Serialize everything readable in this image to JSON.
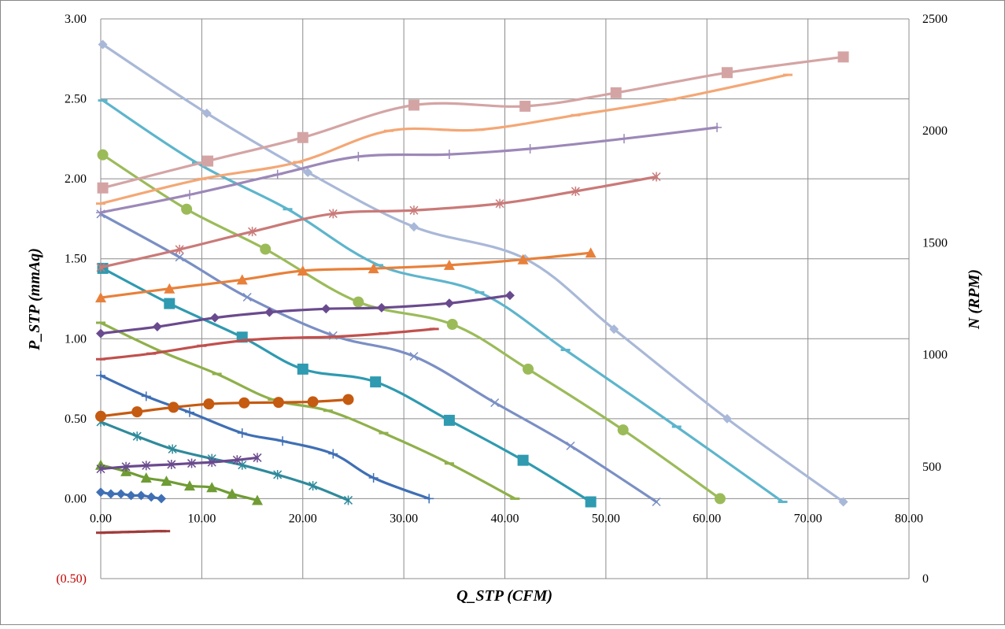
{
  "chart_data": {
    "type": "line",
    "title": "",
    "xlabel": "Q_STP (CFM)",
    "ylabel": "P_STP (mmAq)",
    "y2label": "N (RPM)",
    "xlim": [
      0,
      80
    ],
    "ylim": [
      -0.5,
      3.0
    ],
    "y2lim": [
      0,
      2500
    ],
    "grid": true,
    "legend": "none",
    "x_ticks": [
      "0.00",
      "10.00",
      "20.00",
      "30.00",
      "40.00",
      "50.00",
      "60.00",
      "70.00",
      "80.00"
    ],
    "y_ticks": [
      "(0.50)",
      "0.00",
      "0.50",
      "1.00",
      "1.50",
      "2.00",
      "2.50",
      "3.00"
    ],
    "y2_ticks": [
      "0",
      "500",
      "1000",
      "1500",
      "2000",
      "2500"
    ],
    "series": [
      {
        "name": "",
        "axis": "left",
        "color": "#3f6fb5",
        "marker": "diamond",
        "x": [
          0,
          1,
          2,
          3,
          4,
          5,
          6
        ],
        "y": [
          0.04,
          0.03,
          0.03,
          0.02,
          0.02,
          0.01,
          0.0
        ]
      },
      {
        "name": "",
        "axis": "left",
        "color": "#6f9c34",
        "marker": "triangle",
        "x": [
          0,
          2.5,
          4.5,
          6.5,
          8.8,
          11,
          13,
          15.5
        ],
        "y": [
          0.21,
          0.17,
          0.13,
          0.11,
          0.08,
          0.07,
          0.03,
          -0.01
        ]
      },
      {
        "name": "",
        "axis": "left",
        "color": "#2f8a9b",
        "marker": "asterisk",
        "x": [
          0,
          3.6,
          7.1,
          11,
          14,
          17.5,
          21,
          24.5
        ],
        "y": [
          0.48,
          0.39,
          0.31,
          0.25,
          0.21,
          0.15,
          0.08,
          -0.01
        ]
      },
      {
        "name": "",
        "axis": "left",
        "color": "#3f6fb5",
        "marker": "plus",
        "x": [
          0,
          4.5,
          8.8,
          14,
          18,
          23,
          27,
          32.5
        ],
        "y": [
          0.77,
          0.64,
          0.54,
          0.41,
          0.36,
          0.28,
          0.13,
          0.0
        ]
      },
      {
        "name": "",
        "axis": "left",
        "color": "#8fb04a",
        "marker": "dash",
        "x": [
          0,
          6,
          11.5,
          17,
          22.5,
          28,
          34.5,
          41
        ],
        "y": [
          1.1,
          0.92,
          0.78,
          0.62,
          0.55,
          0.41,
          0.22,
          0.0
        ]
      },
      {
        "name": "",
        "axis": "left",
        "color": "#2f9ab0",
        "marker": "square",
        "x": [
          0.2,
          6.8,
          14,
          20,
          27.2,
          34.5,
          41.8,
          48.5
        ],
        "y": [
          1.44,
          1.22,
          1.01,
          0.81,
          0.73,
          0.49,
          0.24,
          -0.02
        ]
      },
      {
        "name": "",
        "axis": "left",
        "color": "#7a8fc4",
        "marker": "x",
        "x": [
          0,
          7.8,
          14.5,
          23,
          31,
          39,
          46.5,
          55
        ],
        "y": [
          1.78,
          1.51,
          1.26,
          1.02,
          0.89,
          0.6,
          0.33,
          -0.02
        ]
      },
      {
        "name": "",
        "axis": "left",
        "color": "#9bbb59",
        "marker": "circle",
        "x": [
          0.2,
          8.5,
          16.3,
          25.5,
          34.8,
          42.3,
          51.7,
          61.3
        ],
        "y": [
          2.15,
          1.81,
          1.56,
          1.23,
          1.09,
          0.81,
          0.43,
          0.0
        ]
      },
      {
        "name": "",
        "axis": "left",
        "color": "#5db5cc",
        "marker": "dash",
        "x": [
          0.2,
          9.5,
          18.5,
          27.5,
          37.5,
          46,
          57,
          67.5
        ],
        "y": [
          2.49,
          2.1,
          1.81,
          1.46,
          1.29,
          0.93,
          0.45,
          -0.02
        ]
      },
      {
        "name": "",
        "axis": "left",
        "color": "#a9b8d8",
        "marker": "diamond",
        "x": [
          0.2,
          10.5,
          20.5,
          31,
          42,
          50.8,
          62,
          73.5
        ],
        "y": [
          2.84,
          2.41,
          2.04,
          1.7,
          1.5,
          1.06,
          0.5,
          -0.02
        ]
      },
      {
        "name": "",
        "axis": "right",
        "color": "#a03c3c",
        "marker": "dash",
        "x": [
          0,
          0.8,
          1.6,
          2.4,
          3.2,
          4,
          4.8,
          5.6,
          6.4
        ],
        "y": [
          205,
          206,
          207,
          208,
          209,
          210,
          211,
          212,
          212
        ]
      },
      {
        "name": "",
        "axis": "right",
        "color": "#c55a11",
        "marker": "circle",
        "x": [
          0,
          3.6,
          7.2,
          10.7,
          14.2,
          17.6,
          21,
          24.5
        ],
        "y": [
          725,
          745,
          765,
          780,
          785,
          787,
          790,
          800
        ]
      },
      {
        "name": "",
        "axis": "right",
        "color": "#6a4a8e",
        "marker": "asterisk",
        "x": [
          0,
          2.5,
          4.5,
          7,
          9,
          11,
          13.5,
          15.5
        ],
        "y": [
          490,
          500,
          505,
          510,
          515,
          520,
          530,
          540
        ]
      },
      {
        "name": "",
        "axis": "right",
        "color": "#c0504d",
        "marker": "dash",
        "x": [
          0,
          5,
          10,
          14.5,
          18.5,
          23,
          28,
          33
        ],
        "y": [
          980,
          1005,
          1040,
          1065,
          1075,
          1080,
          1095,
          1115
        ]
      },
      {
        "name": "",
        "axis": "right",
        "color": "#6a4a8e",
        "marker": "diamond",
        "x": [
          0,
          5.6,
          11.3,
          16.7,
          22.3,
          27.8,
          34.5,
          40.5
        ],
        "y": [
          1095,
          1125,
          1165,
          1190,
          1205,
          1210,
          1230,
          1265
        ]
      },
      {
        "name": "",
        "axis": "right",
        "color": "#e8803a",
        "marker": "triangle",
        "x": [
          0,
          6.8,
          14,
          20,
          27,
          34.5,
          41.8,
          48.5
        ],
        "y": [
          1255,
          1295,
          1335,
          1375,
          1385,
          1400,
          1425,
          1455
        ]
      },
      {
        "name": "",
        "axis": "right",
        "color": "#c97a78",
        "marker": "asterisk",
        "x": [
          0,
          7.8,
          15,
          23,
          31,
          39.5,
          47,
          55
        ],
        "y": [
          1390,
          1470,
          1550,
          1630,
          1645,
          1675,
          1730,
          1795
        ]
      },
      {
        "name": "",
        "axis": "right",
        "color": "#9c88b8",
        "marker": "plus",
        "x": [
          0,
          8.8,
          17.5,
          25.5,
          34.5,
          42.5,
          51.8,
          61
        ],
        "y": [
          1635,
          1715,
          1805,
          1885,
          1895,
          1920,
          1965,
          2015
        ]
      },
      {
        "name": "",
        "axis": "right",
        "color": "#f4a775",
        "marker": "dash",
        "x": [
          0,
          10,
          19.5,
          28.5,
          37.5,
          47,
          56.5,
          68
        ],
        "y": [
          1675,
          1785,
          1860,
          2000,
          2005,
          2070,
          2140,
          2250
        ]
      },
      {
        "name": "",
        "axis": "right",
        "color": "#d4a4a4",
        "marker": "square",
        "x": [
          0.2,
          10.6,
          20,
          31,
          42,
          51,
          62,
          73.5
        ],
        "y": [
          1745,
          1865,
          1970,
          2115,
          2110,
          2170,
          2260,
          2330
        ]
      }
    ]
  }
}
